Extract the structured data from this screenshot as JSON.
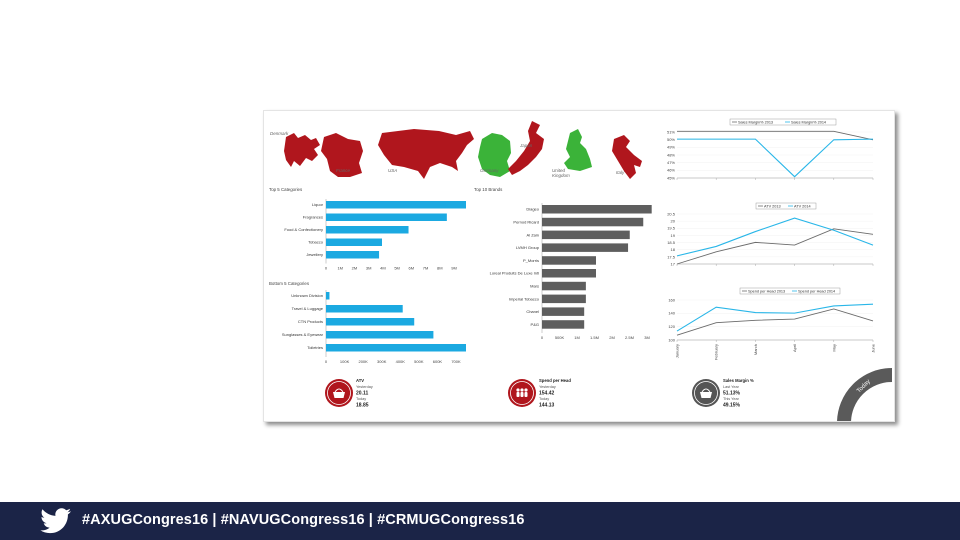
{
  "footer": {
    "hashtags": "#AXUGCongres16 | #NAVUGCongress16 | #CRMUGCongress16",
    "twitter_icon": "twitter-bird-icon",
    "background": "#1b2447"
  },
  "colors": {
    "red": "#b0161d",
    "green": "#3bb339",
    "blue": "#1ba9e1",
    "dark_grey": "#5e5e5e",
    "line_2013": "#6b6b6b",
    "line_2014": "#29b6e8"
  },
  "map_labels": [
    "Denmark",
    "France",
    "USA",
    "Germany",
    "Japan",
    "United Kingdom",
    "Italy"
  ],
  "kpis": [
    {
      "title": "ATV",
      "label1": "Yesterday",
      "value1": "20.11",
      "label2": "Today",
      "value2": "18.85",
      "icon": "basket-icon",
      "color": "#b0161d"
    },
    {
      "title": "Spend per Head",
      "label1": "Yesterday",
      "value1": "154.42",
      "label2": "Today",
      "value2": "144.13",
      "icon": "people-icon",
      "color": "#b0161d"
    },
    {
      "title": "Sales Margin %",
      "label1": "Last Year",
      "value1": "51.13%",
      "label2": "This Year",
      "value2": "49.15%",
      "icon": "basket-icon",
      "color": "#555555"
    }
  ],
  "gauge_label": "Today",
  "chart_data": [
    {
      "type": "bar",
      "orientation": "horizontal",
      "title": "Top 5 Categories",
      "categories": [
        "Liquor",
        "Fragrances",
        "Food & Confectionery",
        "Tobacco",
        "Jewellery"
      ],
      "values": [
        9.5,
        8.2,
        5.6,
        3.8,
        3.6
      ],
      "ticks": [
        "0",
        "1M",
        "2M",
        "3M",
        "4M",
        "5M",
        "6M",
        "7M",
        "8M",
        "9M"
      ],
      "xlim": [
        0,
        9.5
      ],
      "color": "#1ba9e1"
    },
    {
      "type": "bar",
      "orientation": "horizontal",
      "title": "Bottom 5 Categories",
      "categories": [
        "Unknown Division",
        "Travel & Luggage",
        "CTN Products",
        "Sunglasses & Eyewear",
        "Toiletries"
      ],
      "values": [
        18,
        400,
        460,
        560,
        730
      ],
      "ticks": [
        "0",
        "100K",
        "200K",
        "300K",
        "400K",
        "500K",
        "600K",
        "700K"
      ],
      "xlim": [
        0,
        730
      ],
      "color": "#1ba9e1"
    },
    {
      "type": "bar",
      "orientation": "horizontal",
      "title": "Top 10 Brands",
      "categories": [
        "Diageo",
        "Pernod Ricard",
        "Al Zain",
        "LVMH Group",
        "P_Morris",
        "Loreal Produits De Luxe Intl",
        "Mars",
        "Imperial Tobacco",
        "Chanel",
        "P&G"
      ],
      "values": [
        3.25,
        3.0,
        2.6,
        2.55,
        1.6,
        1.6,
        1.3,
        1.3,
        1.25,
        1.25
      ],
      "ticks": [
        "0",
        "500K",
        "1M",
        "1.5M",
        "2M",
        "2.5M",
        "3M"
      ],
      "xlim": [
        0,
        3.2
      ],
      "color": "#5e5e5e"
    },
    {
      "type": "line",
      "series": [
        {
          "name": "Sales Margin% 2013",
          "values": [
            51.7,
            51.7,
            51.7,
            51.7,
            51.7,
            50.4
          ]
        },
        {
          "name": "Sales Margin% 2014",
          "values": [
            50.5,
            50.5,
            50.5,
            44.7,
            50.4,
            50.5
          ]
        }
      ],
      "ylim": [
        44.5,
        51.6
      ],
      "yticks": [
        "51%",
        "50%",
        "49%",
        "48%",
        "47%",
        "46%",
        "45%"
      ]
    },
    {
      "type": "line",
      "series": [
        {
          "name": "ATV 2013",
          "values": [
            17,
            17.9,
            18.6,
            18.4,
            19.6,
            19.2
          ]
        },
        {
          "name": "ATV 2014",
          "values": [
            17.6,
            18.3,
            19.4,
            20.4,
            19.5,
            18.4
          ]
        }
      ],
      "ylim": [
        17,
        20.7
      ],
      "yticks": [
        "20.5",
        "20",
        "19.5",
        "19",
        "18.5",
        "18",
        "17.5",
        "17"
      ]
    },
    {
      "type": "line",
      "categories": [
        "January",
        "February",
        "March",
        "April",
        "May",
        "June"
      ],
      "series": [
        {
          "name": "Spend per Head 2013",
          "values": [
            103,
            124,
            128,
            130,
            147,
            127
          ]
        },
        {
          "name": "Spend per Head 2014",
          "values": [
            110,
            150,
            141,
            140,
            152,
            155
          ]
        }
      ],
      "ylim": [
        95,
        162
      ],
      "yticks": [
        "160",
        "140",
        "120",
        "100"
      ]
    }
  ]
}
